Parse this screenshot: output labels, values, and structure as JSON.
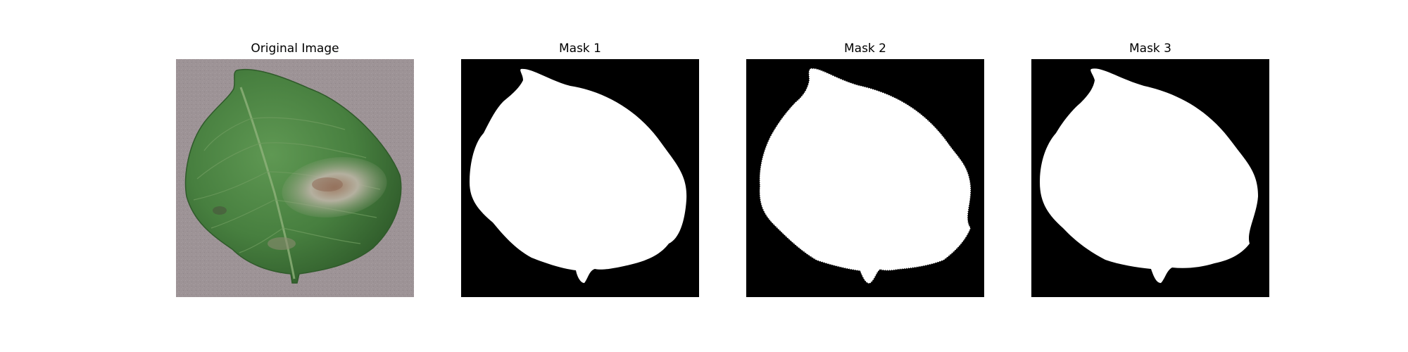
{
  "panels": [
    {
      "title": "Original Image",
      "kind": "photo"
    },
    {
      "title": "Mask 1",
      "kind": "mask"
    },
    {
      "title": "Mask 2",
      "kind": "mask"
    },
    {
      "title": "Mask 3",
      "kind": "mask"
    }
  ],
  "colors": {
    "background": "#ffffff",
    "mask_background": "#000000",
    "mask_foreground": "#ffffff",
    "photo_surface": "#9d9396",
    "leaf_dark": "#3a6a34",
    "leaf_mid": "#4f8a47",
    "leaf_light": "#7fae6a",
    "lesion": "#a8a59a",
    "lesion_brown": "#8a6b55"
  }
}
